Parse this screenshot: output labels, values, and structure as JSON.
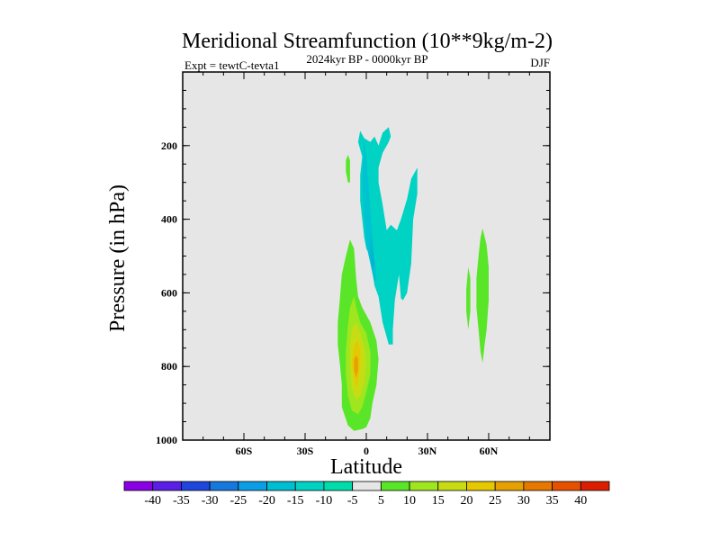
{
  "chart_data": {
    "type": "contour",
    "title": "Meridional Streamfunction (10**9kg/m-2)",
    "subtitle": "2024kyr BP - 0000kyr BP",
    "left_label": "Expt = tewtC-tevta1",
    "right_label": "DJF",
    "xlabel": "Latitude",
    "ylabel": "Pressure (in hPa)",
    "xlim": [
      -90,
      90
    ],
    "ylim": [
      0,
      1000
    ],
    "y_inverted": true,
    "background_color": "#e6e6e6",
    "x_ticks": [
      {
        "value": -60,
        "label": "60S"
      },
      {
        "value": -30,
        "label": "30S"
      },
      {
        "value": 0,
        "label": "0"
      },
      {
        "value": 30,
        "label": "30N"
      },
      {
        "value": 60,
        "label": "60N"
      }
    ],
    "y_ticks": [
      {
        "value": 200,
        "label": "200"
      },
      {
        "value": 400,
        "label": "400"
      },
      {
        "value": 600,
        "label": "600"
      },
      {
        "value": 800,
        "label": "800"
      },
      {
        "value": 1000,
        "label": "1000"
      }
    ],
    "colorbar": {
      "levels": [
        "-40",
        "-35",
        "-30",
        "-25",
        "-20",
        "-15",
        "-10",
        "-5",
        "5",
        "10",
        "15",
        "20",
        "25",
        "30",
        "35",
        "40"
      ],
      "colors": [
        "#8a00e6",
        "#5a1ee6",
        "#1e46dc",
        "#1478dc",
        "#0a9ee6",
        "#00bed2",
        "#00d2c3",
        "#00dcaa",
        "#e6e6e6",
        "#5ae628",
        "#a0e61e",
        "#c8dc14",
        "#e6c800",
        "#e6a000",
        "#e67800",
        "#e65000",
        "#dc1e00"
      ]
    },
    "regions": [
      {
        "name": "neg-upper-cell",
        "level": "-5 to -10",
        "color": "#00d2c3",
        "points": [
          [
            -3,
            160
          ],
          [
            -1,
            180
          ],
          [
            2,
            190
          ],
          [
            4,
            175
          ],
          [
            6,
            200
          ],
          [
            8,
            165
          ],
          [
            11,
            150
          ],
          [
            12,
            175
          ],
          [
            11,
            190
          ],
          [
            8,
            220
          ],
          [
            6,
            260
          ],
          [
            6,
            300
          ],
          [
            8,
            360
          ],
          [
            10,
            430
          ],
          [
            12,
            415
          ],
          [
            15,
            430
          ],
          [
            17,
            400
          ],
          [
            20,
            345
          ],
          [
            22,
            290
          ],
          [
            25,
            260
          ],
          [
            25,
            330
          ],
          [
            23,
            400
          ],
          [
            22,
            520
          ],
          [
            20,
            600
          ],
          [
            18,
            620
          ],
          [
            17,
            615
          ],
          [
            16,
            550
          ],
          [
            14,
            620
          ],
          [
            13,
            700
          ],
          [
            13,
            740
          ],
          [
            11,
            740
          ],
          [
            8,
            680
          ],
          [
            6,
            610
          ],
          [
            4,
            580
          ],
          [
            3,
            540
          ],
          [
            2,
            500
          ],
          [
            0,
            480
          ],
          [
            -1,
            450
          ],
          [
            -2,
            400
          ],
          [
            -3,
            350
          ],
          [
            -3,
            280
          ],
          [
            -2,
            230
          ],
          [
            -4,
            190
          ]
        ]
      },
      {
        "name": "neg-inner-cell",
        "level": "-10 to -15",
        "color": "#00c3d2",
        "points": [
          [
            -1,
            180
          ],
          [
            0,
            230
          ],
          [
            1,
            300
          ],
          [
            2,
            380
          ],
          [
            3,
            450
          ],
          [
            4,
            500
          ],
          [
            5,
            560
          ],
          [
            4,
            575
          ],
          [
            2,
            520
          ],
          [
            0,
            470
          ],
          [
            -1,
            400
          ],
          [
            -2,
            300
          ]
        ]
      },
      {
        "name": "neg-core",
        "level": "-15",
        "color": "#00b4d2",
        "points": [
          [
            2,
            440
          ],
          [
            3,
            480
          ],
          [
            4,
            520
          ],
          [
            3,
            540
          ],
          [
            2,
            500
          ]
        ]
      },
      {
        "name": "pos-small-patch",
        "level": "5 to 10",
        "color": "#5ae628",
        "points": [
          [
            -9,
            225
          ],
          [
            -8,
            240
          ],
          [
            -8,
            270
          ],
          [
            -8,
            300
          ],
          [
            -9,
            300
          ],
          [
            -10,
            270
          ],
          [
            -10,
            240
          ]
        ]
      },
      {
        "name": "pos-lower-cell",
        "level": "5 to 10",
        "color": "#5ae628",
        "points": [
          [
            -12,
            550
          ],
          [
            -10,
            500
          ],
          [
            -8,
            455
          ],
          [
            -6,
            480
          ],
          [
            -5,
            560
          ],
          [
            -4,
            610
          ],
          [
            -2,
            640
          ],
          [
            2,
            680
          ],
          [
            5,
            730
          ],
          [
            6,
            780
          ],
          [
            5,
            850
          ],
          [
            3,
            900
          ],
          [
            2,
            940
          ],
          [
            0,
            965
          ],
          [
            -2,
            970
          ],
          [
            -6,
            975
          ],
          [
            -9,
            960
          ],
          [
            -12,
            910
          ],
          [
            -12,
            850
          ],
          [
            -13,
            790
          ],
          [
            -14,
            740
          ],
          [
            -14,
            680
          ],
          [
            -13,
            620
          ]
        ]
      },
      {
        "name": "pos-lower-cell-mid",
        "level": "10 to 15",
        "color": "#a0e61e",
        "points": [
          [
            -8,
            640
          ],
          [
            -6,
            610
          ],
          [
            -5,
            640
          ],
          [
            -3,
            680
          ],
          [
            0,
            710
          ],
          [
            2,
            760
          ],
          [
            2,
            820
          ],
          [
            0,
            870
          ],
          [
            -2,
            910
          ],
          [
            -4,
            930
          ],
          [
            -7,
            920
          ],
          [
            -9,
            880
          ],
          [
            -10,
            820
          ],
          [
            -10,
            760
          ],
          [
            -9,
            690
          ]
        ]
      },
      {
        "name": "pos-lower-cell-inner",
        "level": "15 to 20",
        "color": "#c8dc14",
        "points": [
          [
            -7,
            700
          ],
          [
            -5,
            680
          ],
          [
            -3,
            710
          ],
          [
            -1,
            750
          ],
          [
            0,
            790
          ],
          [
            -1,
            840
          ],
          [
            -3,
            880
          ],
          [
            -5,
            890
          ],
          [
            -7,
            860
          ],
          [
            -8,
            800
          ],
          [
            -8,
            740
          ]
        ]
      },
      {
        "name": "pos-lower-cell-core",
        "level": "20 to 25",
        "color": "#e6c800",
        "points": [
          [
            -6,
            740
          ],
          [
            -4,
            730
          ],
          [
            -3,
            760
          ],
          [
            -3,
            800
          ],
          [
            -4,
            840
          ],
          [
            -5,
            860
          ],
          [
            -6,
            830
          ],
          [
            -7,
            790
          ]
        ]
      },
      {
        "name": "pos-lower-cell-peak",
        "level": "25",
        "color": "#e6a000",
        "points": [
          [
            -5,
            770
          ],
          [
            -4,
            780
          ],
          [
            -4,
            810
          ],
          [
            -5,
            830
          ],
          [
            -6,
            810
          ],
          [
            -6,
            780
          ]
        ]
      },
      {
        "name": "pos-nh-patch",
        "level": "5 to 10",
        "color": "#5ae628",
        "points": [
          [
            57,
            425
          ],
          [
            59,
            470
          ],
          [
            60,
            530
          ],
          [
            60,
            620
          ],
          [
            59,
            700
          ],
          [
            58,
            740
          ],
          [
            57,
            790
          ],
          [
            56,
            760
          ],
          [
            55,
            700
          ],
          [
            54,
            640
          ],
          [
            54,
            560
          ],
          [
            55,
            500
          ],
          [
            56,
            450
          ]
        ]
      },
      {
        "name": "pos-nh-sliver",
        "level": "5 to 10",
        "color": "#5ae628",
        "points": [
          [
            50,
            530
          ],
          [
            51,
            560
          ],
          [
            51,
            610
          ],
          [
            51,
            650
          ],
          [
            50,
            700
          ],
          [
            49,
            650
          ],
          [
            49,
            590
          ]
        ]
      }
    ]
  }
}
